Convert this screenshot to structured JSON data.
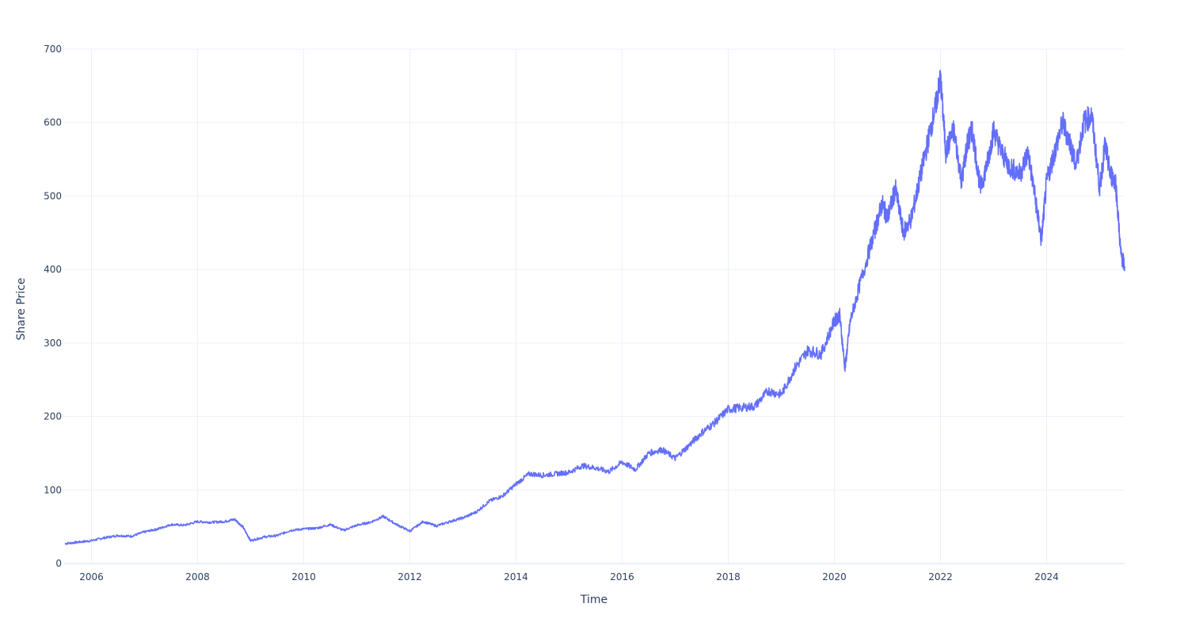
{
  "chart_data": {
    "type": "line",
    "title": "",
    "xlabel": "Time",
    "ylabel": "Share Price",
    "xlim": [
      2005.47,
      2025.47
    ],
    "ylim": [
      0,
      700
    ],
    "x_ticks": [
      {
        "value": 2006,
        "label": "2006"
      },
      {
        "value": 2008,
        "label": "2008"
      },
      {
        "value": 2010,
        "label": "2010"
      },
      {
        "value": 2012,
        "label": "2012"
      },
      {
        "value": 2014,
        "label": "2014"
      },
      {
        "value": 2016,
        "label": "2016"
      },
      {
        "value": 2018,
        "label": "2018"
      },
      {
        "value": 2020,
        "label": "2020"
      },
      {
        "value": 2022,
        "label": "2022"
      },
      {
        "value": 2024,
        "label": "2024"
      }
    ],
    "y_ticks": [
      {
        "value": 0,
        "label": "0"
      },
      {
        "value": 100,
        "label": "100"
      },
      {
        "value": 200,
        "label": "200"
      },
      {
        "value": 300,
        "label": "300"
      },
      {
        "value": 400,
        "label": "400"
      },
      {
        "value": 500,
        "label": "500"
      },
      {
        "value": 600,
        "label": "600"
      },
      {
        "value": 700,
        "label": "700"
      }
    ],
    "grid": true,
    "line_color": "#636efa",
    "series": [
      {
        "x": [
          2005.5,
          2005.75,
          2006.0,
          2006.25,
          2006.5,
          2006.75,
          2007.0,
          2007.25,
          2007.5,
          2007.75,
          2008.0,
          2008.25,
          2008.5,
          2008.7,
          2008.85,
          2009.0,
          2009.25,
          2009.5,
          2009.75,
          2010.0,
          2010.25,
          2010.5,
          2010.75,
          2011.0,
          2011.25,
          2011.5,
          2011.75,
          2012.0,
          2012.25,
          2012.5,
          2012.75,
          2013.0,
          2013.25,
          2013.5,
          2013.75,
          2014.0,
          2014.25,
          2014.5,
          2014.75,
          2015.0,
          2015.25,
          2015.5,
          2015.75,
          2016.0,
          2016.25,
          2016.5,
          2016.75,
          2017.0,
          2017.25,
          2017.5,
          2017.75,
          2018.0,
          2018.25,
          2018.5,
          2018.75,
          2019.0,
          2019.25,
          2019.5,
          2019.75,
          2020.0,
          2020.1,
          2020.2,
          2020.3,
          2020.5,
          2020.75,
          2020.9,
          2021.0,
          2021.15,
          2021.3,
          2021.45,
          2021.6,
          2021.75,
          2021.9,
          2022.0,
          2022.1,
          2022.25,
          2022.4,
          2022.5,
          2022.6,
          2022.75,
          2022.9,
          2023.0,
          2023.15,
          2023.3,
          2023.5,
          2023.65,
          2023.8,
          2023.9,
          2024.0,
          2024.15,
          2024.3,
          2024.45,
          2024.55,
          2024.7,
          2024.85,
          2025.0,
          2025.1,
          2025.2,
          2025.3,
          2025.4,
          2025.47
        ],
        "y": [
          27,
          29,
          31,
          35,
          38,
          37,
          43,
          47,
          53,
          52,
          57,
          56,
          57,
          60,
          50,
          31,
          36,
          38,
          45,
          47,
          48,
          53,
          45,
          52,
          56,
          64,
          53,
          44,
          57,
          51,
          57,
          62,
          70,
          85,
          92,
          108,
          122,
          120,
          122,
          124,
          133,
          130,
          125,
          138,
          128,
          150,
          155,
          143,
          160,
          178,
          192,
          210,
          212,
          214,
          235,
          230,
          265,
          290,
          285,
          330,
          338,
          265,
          330,
          385,
          450,
          490,
          470,
          510,
          450,
          470,
          520,
          570,
          620,
          660,
          560,
          590,
          520,
          570,
          590,
          510,
          550,
          590,
          560,
          540,
          530,
          560,
          490,
          440,
          520,
          560,
          600,
          570,
          540,
          600,
          610,
          510,
          570,
          530,
          520,
          420,
          405
        ]
      }
    ]
  }
}
